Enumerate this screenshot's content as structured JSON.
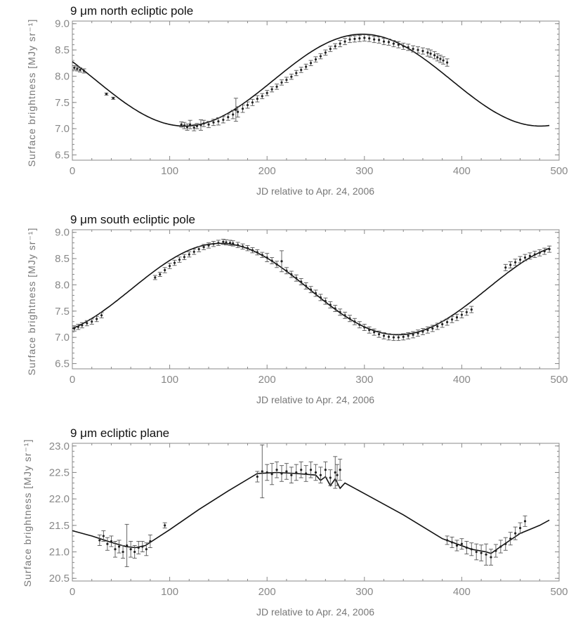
{
  "chart_data": [
    {
      "type": "scatter",
      "title": "9 μm north ecliptic pole",
      "xlabel": "JD relative to Apr. 24, 2006",
      "ylabel": "Surface brightness [MJy sr⁻¹]",
      "xlim": [
        0,
        500
      ],
      "ylim": [
        6.4,
        9.05
      ],
      "xticks": [
        0,
        100,
        200,
        300,
        400,
        500
      ],
      "yticks": [
        6.5,
        7.0,
        7.5,
        8.0,
        8.5,
        9.0
      ],
      "xtick_labels": [
        "0",
        "100",
        "200",
        "300",
        "400",
        "500"
      ],
      "ytick_labels": [
        "6.5",
        "7.0",
        "7.5",
        "8.0",
        "8.5",
        "9.0"
      ],
      "model": {
        "mean": 7.925,
        "amplitude": 0.875,
        "period": 365.25,
        "peak_day": 298
      },
      "series": [
        {
          "name": "observations",
          "x": [
            2,
            5,
            8,
            12,
            35,
            42,
            112,
            115,
            118,
            121,
            125,
            128,
            132,
            135,
            140,
            145,
            150,
            155,
            160,
            165,
            168,
            170,
            175,
            180,
            185,
            190,
            195,
            200,
            205,
            210,
            215,
            220,
            225,
            230,
            235,
            240,
            245,
            250,
            255,
            260,
            265,
            270,
            275,
            280,
            285,
            290,
            295,
            300,
            305,
            310,
            315,
            320,
            325,
            330,
            335,
            340,
            345,
            350,
            355,
            360,
            365,
            368,
            372,
            375,
            378,
            381,
            385
          ],
          "y": [
            8.16,
            8.14,
            8.12,
            8.1,
            7.66,
            7.58,
            7.08,
            7.06,
            7.03,
            7.08,
            7.02,
            7.05,
            7.07,
            7.1,
            7.08,
            7.12,
            7.14,
            7.17,
            7.22,
            7.27,
            7.36,
            7.32,
            7.38,
            7.45,
            7.5,
            7.57,
            7.62,
            7.68,
            7.75,
            7.8,
            7.88,
            7.93,
            7.99,
            8.06,
            8.12,
            8.18,
            8.25,
            8.32,
            8.38,
            8.45,
            8.52,
            8.57,
            8.62,
            8.66,
            8.7,
            8.71,
            8.72,
            8.73,
            8.72,
            8.7,
            8.69,
            8.66,
            8.65,
            8.62,
            8.6,
            8.57,
            8.55,
            8.52,
            8.5,
            8.48,
            8.45,
            8.43,
            8.4,
            8.36,
            8.33,
            8.3,
            8.26
          ],
          "err": [
            0.04,
            0.04,
            0.04,
            0.04,
            0.02,
            0.02,
            0.05,
            0.06,
            0.06,
            0.08,
            0.06,
            0.05,
            0.1,
            0.06,
            0.06,
            0.06,
            0.07,
            0.06,
            0.06,
            0.08,
            0.22,
            0.1,
            0.07,
            0.06,
            0.06,
            0.06,
            0.05,
            0.05,
            0.05,
            0.05,
            0.05,
            0.05,
            0.05,
            0.05,
            0.05,
            0.05,
            0.05,
            0.05,
            0.05,
            0.05,
            0.05,
            0.05,
            0.06,
            0.06,
            0.06,
            0.06,
            0.06,
            0.06,
            0.06,
            0.06,
            0.06,
            0.06,
            0.06,
            0.06,
            0.06,
            0.06,
            0.06,
            0.06,
            0.06,
            0.06,
            0.07,
            0.07,
            0.07,
            0.07,
            0.07,
            0.07,
            0.07
          ]
        }
      ]
    },
    {
      "type": "scatter",
      "title": "9 μm south ecliptic pole",
      "xlabel": "JD relative to Apr. 24, 2006",
      "ylabel": "Surface brightness [MJy sr⁻¹]",
      "xlim": [
        0,
        500
      ],
      "ylim": [
        6.4,
        9.05
      ],
      "xticks": [
        0,
        100,
        200,
        300,
        400,
        500
      ],
      "yticks": [
        6.5,
        7.0,
        7.5,
        8.0,
        8.5,
        9.0
      ],
      "xtick_labels": [
        "0",
        "100",
        "200",
        "300",
        "400",
        "500"
      ],
      "ytick_labels": [
        "6.5",
        "7.0",
        "7.5",
        "8.0",
        "8.5",
        "9.0"
      ],
      "model": {
        "mean": 7.92,
        "amplitude": 0.87,
        "period": 365.25,
        "peak_day": 152
      },
      "series": [
        {
          "name": "observations",
          "x": [
            2,
            6,
            10,
            15,
            20,
            25,
            30,
            85,
            90,
            95,
            100,
            105,
            110,
            115,
            120,
            125,
            130,
            135,
            140,
            145,
            150,
            155,
            158,
            162,
            165,
            170,
            175,
            180,
            185,
            190,
            195,
            200,
            205,
            210,
            215,
            220,
            225,
            230,
            235,
            240,
            245,
            250,
            255,
            260,
            265,
            270,
            275,
            280,
            285,
            290,
            295,
            300,
            305,
            310,
            315,
            320,
            325,
            330,
            335,
            340,
            345,
            350,
            355,
            360,
            365,
            370,
            375,
            380,
            385,
            390,
            395,
            400,
            405,
            410,
            445,
            450,
            455,
            460,
            465,
            470,
            475,
            480,
            485,
            490
          ],
          "y": [
            7.17,
            7.2,
            7.23,
            7.27,
            7.3,
            7.35,
            7.42,
            8.14,
            8.2,
            8.28,
            8.36,
            8.42,
            8.48,
            8.53,
            8.58,
            8.63,
            8.68,
            8.72,
            8.75,
            8.78,
            8.8,
            8.82,
            8.81,
            8.8,
            8.79,
            8.76,
            8.73,
            8.7,
            8.66,
            8.62,
            8.57,
            8.52,
            8.46,
            8.39,
            8.45,
            8.27,
            8.2,
            8.13,
            8.06,
            7.98,
            7.91,
            7.84,
            7.76,
            7.69,
            7.62,
            7.55,
            7.48,
            7.42,
            7.36,
            7.3,
            7.24,
            7.19,
            7.14,
            7.1,
            7.06,
            7.03,
            7.01,
            7.0,
            7.0,
            7.01,
            7.03,
            7.05,
            7.08,
            7.11,
            7.14,
            7.17,
            7.21,
            7.25,
            7.29,
            7.34,
            7.38,
            7.43,
            7.48,
            7.53,
            8.33,
            8.38,
            8.43,
            8.48,
            8.52,
            8.55,
            8.58,
            8.61,
            8.64,
            8.68
          ],
          "err": [
            0.05,
            0.05,
            0.05,
            0.05,
            0.05,
            0.05,
            0.05,
            0.04,
            0.04,
            0.05,
            0.05,
            0.05,
            0.05,
            0.05,
            0.05,
            0.05,
            0.05,
            0.05,
            0.05,
            0.05,
            0.05,
            0.05,
            0.05,
            0.05,
            0.05,
            0.05,
            0.05,
            0.05,
            0.05,
            0.05,
            0.05,
            0.08,
            0.06,
            0.06,
            0.2,
            0.06,
            0.06,
            0.06,
            0.06,
            0.06,
            0.06,
            0.06,
            0.06,
            0.06,
            0.06,
            0.06,
            0.06,
            0.06,
            0.06,
            0.06,
            0.06,
            0.06,
            0.06,
            0.06,
            0.06,
            0.06,
            0.06,
            0.06,
            0.06,
            0.06,
            0.06,
            0.06,
            0.06,
            0.06,
            0.06,
            0.06,
            0.06,
            0.06,
            0.06,
            0.06,
            0.06,
            0.06,
            0.06,
            0.06,
            0.06,
            0.06,
            0.06,
            0.06,
            0.06,
            0.06,
            0.06,
            0.06,
            0.06,
            0.06
          ]
        }
      ]
    },
    {
      "type": "scatter",
      "title": "9 μm ecliptic plane",
      "xlabel": "JD relative to Apr. 24, 2006",
      "ylabel": "Surface brightness [MJy sr⁻¹]",
      "xlim": [
        0,
        500
      ],
      "ylim": [
        20.45,
        23.05
      ],
      "xticks": [
        0,
        100,
        200,
        300,
        400,
        500
      ],
      "yticks": [
        20.5,
        21.0,
        21.5,
        22.0,
        22.5,
        23.0
      ],
      "xtick_labels": [
        "0",
        "100",
        "200",
        "300",
        "400",
        "500"
      ],
      "ytick_labels": [
        "20.5",
        "21.0",
        "21.5",
        "22.0",
        "22.5",
        "23.0"
      ],
      "model": {
        "x": [
          0,
          20,
          40,
          55,
          65,
          75,
          100,
          130,
          160,
          190,
          210,
          230,
          250,
          255,
          260,
          265,
          270,
          275,
          280,
          300,
          340,
          380,
          410,
          425,
          430,
          440,
          460,
          480,
          490
        ],
        "y": [
          21.4,
          21.3,
          21.18,
          21.1,
          21.08,
          21.12,
          21.42,
          21.8,
          22.15,
          22.48,
          22.5,
          22.48,
          22.45,
          22.35,
          22.42,
          22.25,
          22.38,
          22.2,
          22.3,
          22.1,
          21.7,
          21.25,
          21.05,
          21.0,
          20.97,
          21.1,
          21.35,
          21.5,
          21.6
        ]
      },
      "series": [
        {
          "name": "observations",
          "x": [
            28,
            32,
            36,
            40,
            44,
            48,
            52,
            56,
            60,
            64,
            68,
            72,
            76,
            80,
            95,
            190,
            195,
            200,
            205,
            210,
            215,
            220,
            225,
            230,
            235,
            240,
            245,
            250,
            255,
            260,
            265,
            270,
            272,
            275,
            385,
            390,
            395,
            400,
            405,
            410,
            415,
            420,
            425,
            430,
            435,
            440,
            445,
            450,
            455,
            460,
            465
          ],
          "y": [
            21.22,
            21.3,
            21.15,
            21.2,
            21.05,
            21.1,
            21.0,
            21.12,
            21.05,
            21.0,
            21.08,
            21.1,
            21.05,
            21.2,
            21.5,
            22.42,
            22.52,
            22.5,
            22.47,
            22.55,
            22.48,
            22.52,
            22.45,
            22.5,
            22.55,
            22.48,
            22.55,
            22.5,
            22.45,
            22.55,
            22.4,
            22.5,
            22.45,
            22.55,
            21.22,
            21.18,
            21.12,
            21.15,
            21.08,
            21.05,
            21.0,
            20.98,
            20.95,
            20.9,
            21.02,
            21.1,
            21.15,
            21.25,
            21.35,
            21.45,
            21.58
          ],
          "err": [
            0.1,
            0.1,
            0.12,
            0.1,
            0.15,
            0.12,
            0.12,
            0.4,
            0.15,
            0.12,
            0.12,
            0.1,
            0.12,
            0.12,
            0.05,
            0.1,
            0.5,
            0.15,
            0.2,
            0.15,
            0.15,
            0.15,
            0.15,
            0.15,
            0.15,
            0.15,
            0.15,
            0.15,
            0.15,
            0.15,
            0.15,
            0.3,
            0.2,
            0.2,
            0.08,
            0.1,
            0.1,
            0.1,
            0.12,
            0.12,
            0.15,
            0.15,
            0.2,
            0.15,
            0.12,
            0.12,
            0.12,
            0.12,
            0.12,
            0.1,
            0.1
          ]
        }
      ]
    }
  ]
}
